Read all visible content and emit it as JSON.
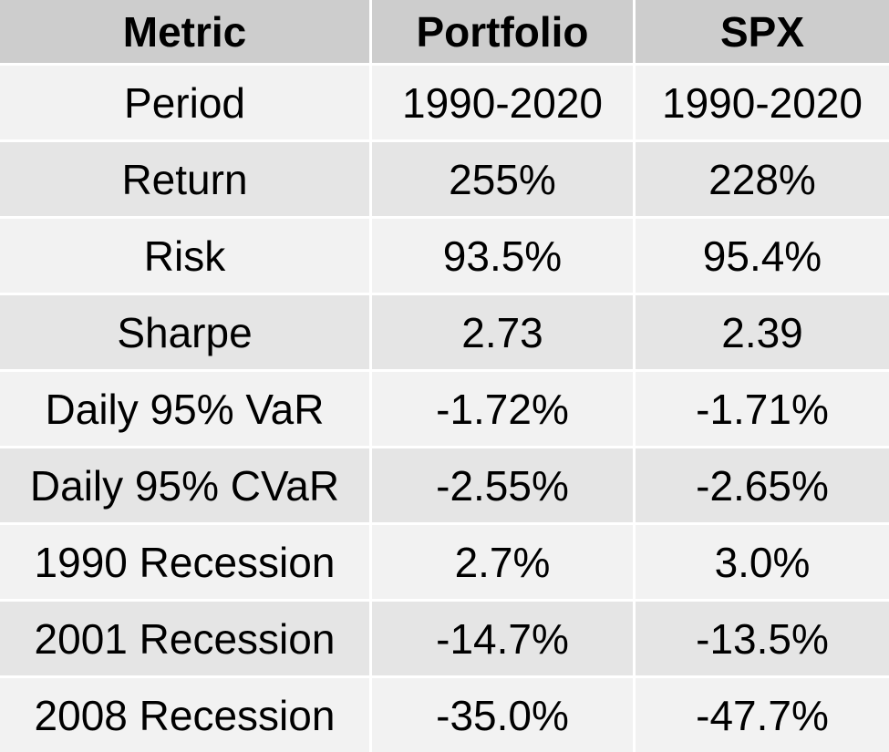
{
  "table": {
    "headers": [
      "Metric",
      "Portfolio",
      "SPX"
    ],
    "rows": [
      [
        "Period",
        "1990-2020",
        "1990-2020"
      ],
      [
        "Return",
        "255%",
        "228%"
      ],
      [
        "Risk",
        "93.5%",
        "95.4%"
      ],
      [
        "Sharpe",
        "2.73",
        "2.39"
      ],
      [
        "Daily 95% VaR",
        "-1.72%",
        "-1.71%"
      ],
      [
        "Daily 95% CVaR",
        "-2.55%",
        "-2.65%"
      ],
      [
        "1990 Recession",
        "2.7%",
        "3.0%"
      ],
      [
        "2001 Recession",
        "-14.7%",
        "-13.5%"
      ],
      [
        "2008 Recession",
        "-35.0%",
        "-47.7%"
      ]
    ]
  },
  "colors": {
    "header_bg": "#cdcdcd",
    "row_light": "#f2f2f2",
    "row_dark": "#e5e5e5",
    "divider": "#ffffff"
  }
}
